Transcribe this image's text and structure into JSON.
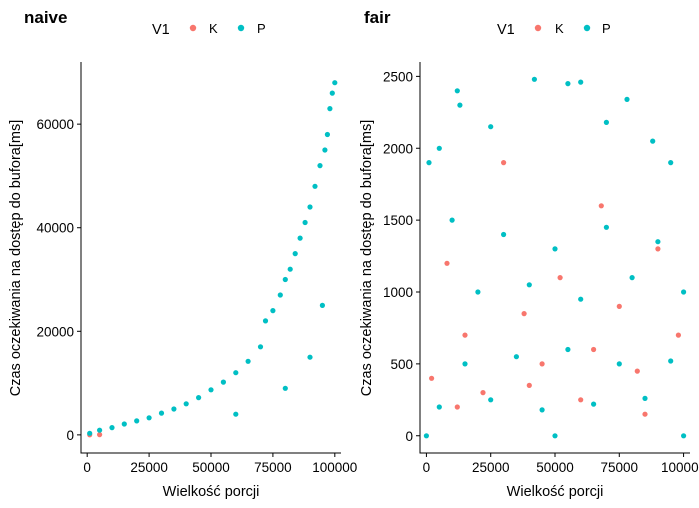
{
  "colors": {
    "K": "#F8766D",
    "P": "#00BFC4"
  },
  "chart_data": [
    {
      "type": "scatter",
      "title": "naive",
      "xlabel": "Wielkość porcji",
      "ylabel": "Czas oczekiwania na dostęp do bufora[ms]",
      "xlim": [
        -2500,
        102500
      ],
      "ylim": [
        -3500,
        72000
      ],
      "x_ticks": [
        0,
        25000,
        50000,
        75000,
        100000
      ],
      "x_tick_labels": [
        "0",
        "25000",
        "50000",
        "75000",
        "100000"
      ],
      "y_ticks": [
        0,
        20000,
        40000,
        60000
      ],
      "y_tick_labels": [
        "0",
        "20000",
        "40000",
        "60000"
      ],
      "legend": {
        "title": "V1",
        "position": "top",
        "entries": [
          "K",
          "P"
        ]
      },
      "grid": false,
      "series": [
        {
          "name": "K",
          "points": [
            [
              1000,
              20
            ],
            [
              5000,
              60
            ]
          ]
        },
        {
          "name": "P",
          "points": [
            [
              1000,
              300
            ],
            [
              5000,
              900
            ],
            [
              10000,
              1400
            ],
            [
              15000,
              2100
            ],
            [
              20000,
              2700
            ],
            [
              25000,
              3300
            ],
            [
              30000,
              4200
            ],
            [
              35000,
              5000
            ],
            [
              40000,
              6000
            ],
            [
              45000,
              7200
            ],
            [
              50000,
              8700
            ],
            [
              55000,
              10200
            ],
            [
              60000,
              12000
            ],
            [
              65000,
              14200
            ],
            [
              70000,
              17000
            ],
            [
              72000,
              22000
            ],
            [
              75000,
              24000
            ],
            [
              78000,
              27000
            ],
            [
              80000,
              30000
            ],
            [
              82000,
              32000
            ],
            [
              84000,
              35000
            ],
            [
              86000,
              38000
            ],
            [
              88000,
              41000
            ],
            [
              90000,
              44000
            ],
            [
              92000,
              48000
            ],
            [
              94000,
              52000
            ],
            [
              96000,
              55000
            ],
            [
              97000,
              58000
            ],
            [
              98000,
              63000
            ],
            [
              99000,
              66000
            ],
            [
              100000,
              68000
            ],
            [
              60000,
              4000
            ],
            [
              80000,
              9000
            ],
            [
              90000,
              15000
            ],
            [
              95000,
              25000
            ]
          ]
        }
      ]
    },
    {
      "type": "scatter",
      "title": "fair",
      "xlabel": "Wielkość porcji",
      "ylabel": "Czas oczekiwania na dostęp do bufora[ms]",
      "xlim": [
        -2500,
        102500
      ],
      "ylim": [
        -120,
        2600
      ],
      "x_ticks": [
        0,
        25000,
        50000,
        75000,
        100000
      ],
      "x_tick_labels": [
        "0",
        "25000",
        "50000",
        "75000",
        "100000"
      ],
      "y_ticks": [
        0,
        500,
        1000,
        1500,
        2000,
        2500
      ],
      "y_tick_labels": [
        "0",
        "500",
        "1000",
        "1500",
        "2000",
        "2500"
      ],
      "legend": {
        "title": "V1",
        "position": "top",
        "entries": [
          "K",
          "P"
        ]
      },
      "grid": false,
      "series": [
        {
          "name": "K",
          "points": [
            [
              2000,
              400
            ],
            [
              8000,
              1200
            ],
            [
              15000,
              700
            ],
            [
              22000,
              300
            ],
            [
              30000,
              1900
            ],
            [
              38000,
              850
            ],
            [
              45000,
              500
            ],
            [
              52000,
              1100
            ],
            [
              60000,
              250
            ],
            [
              68000,
              1600
            ],
            [
              75000,
              900
            ],
            [
              82000,
              450
            ],
            [
              90000,
              1300
            ],
            [
              98000,
              700
            ],
            [
              12000,
              200
            ],
            [
              40000,
              350
            ],
            [
              65000,
              600
            ],
            [
              85000,
              150
            ]
          ]
        },
        {
          "name": "P",
          "points": [
            [
              1000,
              1900
            ],
            [
              5000,
              2000
            ],
            [
              12000,
              2400
            ],
            [
              13000,
              2300
            ],
            [
              25000,
              2150
            ],
            [
              42000,
              2480
            ],
            [
              55000,
              2450
            ],
            [
              60000,
              2460
            ],
            [
              70000,
              2180
            ],
            [
              78000,
              2340
            ],
            [
              88000,
              2050
            ],
            [
              95000,
              1900
            ],
            [
              10000,
              1500
            ],
            [
              30000,
              1400
            ],
            [
              50000,
              1300
            ],
            [
              70000,
              1450
            ],
            [
              90000,
              1350
            ],
            [
              20000,
              1000
            ],
            [
              40000,
              1050
            ],
            [
              60000,
              950
            ],
            [
              80000,
              1100
            ],
            [
              100000,
              1000
            ],
            [
              15000,
              500
            ],
            [
              35000,
              550
            ],
            [
              55000,
              600
            ],
            [
              75000,
              500
            ],
            [
              95000,
              520
            ],
            [
              5000,
              200
            ],
            [
              25000,
              250
            ],
            [
              45000,
              180
            ],
            [
              65000,
              220
            ],
            [
              85000,
              260
            ],
            [
              0,
              0
            ],
            [
              50000,
              0
            ],
            [
              100000,
              0
            ]
          ]
        }
      ]
    }
  ]
}
